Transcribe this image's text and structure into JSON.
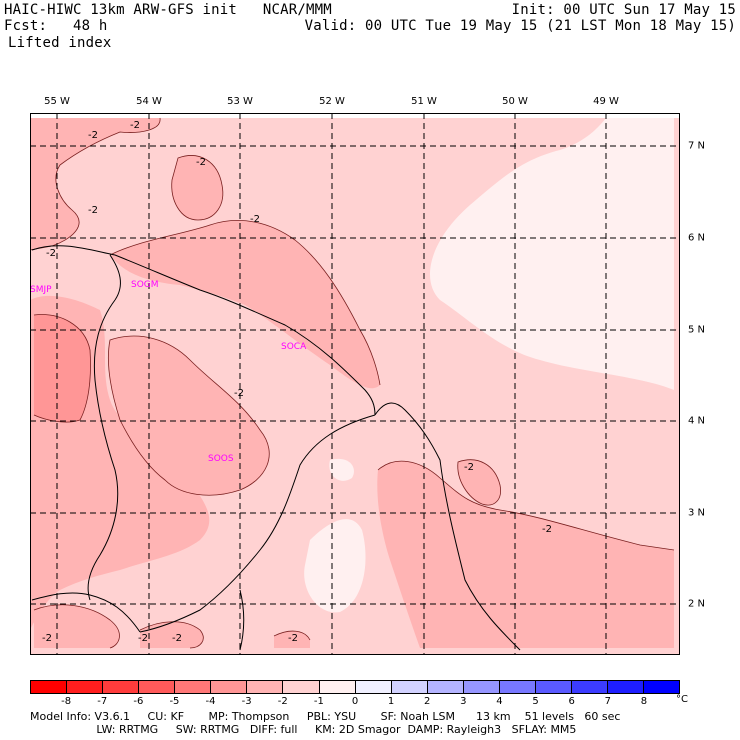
{
  "header": {
    "line1_left": "HAIC-HIWC 13km ARW-GFS init   NCAR/MMM",
    "line1_right": "Init: 00 UTC Sun 17 May 15",
    "line2_left": "Fcst:   48 h",
    "line2_right": "Valid: 00 UTC Tue 19 May 15 (21 LST Mon 18 May 15)",
    "field_name": "Lifted index"
  },
  "longitude_labels": [
    "55 W",
    "54 W",
    "53 W",
    "52 W",
    "51 W",
    "50 W",
    "49 W"
  ],
  "latitude_labels": [
    "7 N",
    "6 N",
    "5 N",
    "4 N",
    "3 N",
    "2 N"
  ],
  "contour_label": "-2",
  "stations": [
    "SMJP",
    "SOGM",
    "SOCA",
    "SOOS"
  ],
  "colorbar": {
    "unit": "°C",
    "tick_labels": [
      "-8",
      "-7",
      "-6",
      "-5",
      "-4",
      "-3",
      "-2",
      "-1",
      "0",
      "1",
      "2",
      "3",
      "4",
      "5",
      "6",
      "7",
      "8"
    ],
    "colors": [
      "#ff0000",
      "#ff1e1e",
      "#ff3c3c",
      "#ff5a5a",
      "#ff7878",
      "#ff9696",
      "#ffb4b4",
      "#ffd2d2",
      "#fff0f0",
      "#f0f0ff",
      "#d2d2ff",
      "#b4b4ff",
      "#9696ff",
      "#7878ff",
      "#5a5aff",
      "#3c3cff",
      "#1e1eff",
      "#0000ff"
    ]
  },
  "footer": {
    "line1": "Model Info: V3.6.1     CU: KF       MP: Thompson     PBL: YSU       SF: Noah LSM      13 km    51 levels   60 sec",
    "line2": "                   LW: RRTMG     SW: RRTMG   DIFF: full     KM: 2D Smagor  DAMP: Rayleigh3   SFLAY: MM5"
  }
}
